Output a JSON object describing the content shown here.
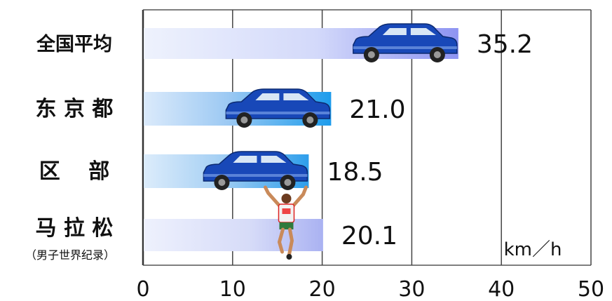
{
  "chart_data": {
    "type": "bar",
    "orientation": "horizontal",
    "categories": [
      "全国平均",
      "东 京 都",
      "区　 部",
      "马 拉 松"
    ],
    "category_sublabels": [
      "",
      "",
      "",
      "（男子世界纪录）"
    ],
    "values": [
      35.2,
      21.0,
      18.5,
      20.1
    ],
    "value_labels": [
      "35.2",
      "21.0",
      "18.5",
      "20.1"
    ],
    "xlim": [
      0,
      50
    ],
    "xticks": [
      0,
      10,
      20,
      30,
      40,
      50
    ],
    "xtick_labels": [
      "0",
      "10",
      "20",
      "30",
      "40",
      "50"
    ],
    "unit": "km／h",
    "grid": "vertical",
    "bar_markers": [
      "car-icon",
      "car-icon",
      "car-icon",
      "runner-icon"
    ],
    "colors": {
      "bar_light": "#dde6fb",
      "bar_dark_1": "#8e94f2",
      "bar_dark_2": "#2aa6ee",
      "bar_dark_3": "#3aa0ea",
      "bar_dark_4": "#b5bdf4",
      "car_body": "#1848b8",
      "car_window": "#d8e6f5",
      "grid": "#444444"
    }
  }
}
